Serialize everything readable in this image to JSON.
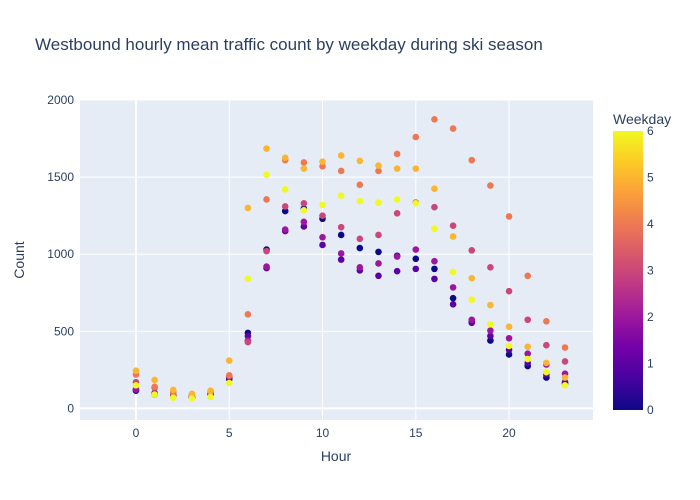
{
  "chart_data": {
    "type": "scatter",
    "title": "Westbound hourly mean traffic count by weekday during ski season",
    "xlabel": "Hour",
    "ylabel": "Count",
    "xlim": [
      -3,
      24.5
    ],
    "ylim": [
      -75,
      2000
    ],
    "xticks": [
      0,
      5,
      10,
      15,
      20
    ],
    "yticks": [
      0,
      500,
      1000,
      1500,
      2000
    ],
    "grid": true,
    "colorbar": {
      "title": "Weekday",
      "range": [
        0,
        6
      ],
      "ticks": [
        0,
        1,
        2,
        3,
        4,
        5,
        6
      ],
      "colorscale": "plasma"
    },
    "colors": [
      "#0d0887",
      "#46039f",
      "#7201a8",
      "#9c179e",
      "#bd3786",
      "#d8576b",
      "#ed7953",
      "#fb9f3a",
      "#fdca26",
      "#f0f921"
    ],
    "x": [
      0,
      1,
      2,
      3,
      4,
      5,
      6,
      7,
      8,
      9,
      10,
      11,
      12,
      13,
      14,
      15,
      16,
      17,
      18,
      19,
      20,
      21,
      22,
      23
    ],
    "series": [
      {
        "weekday": 0,
        "values": [
          115,
          90,
          75,
          70,
          90,
          190,
          490,
          1030,
          1280,
          1295,
          1230,
          1125,
          1040,
          1015,
          990,
          970,
          905,
          715,
          560,
          440,
          350,
          275,
          200,
          160
        ]
      },
      {
        "weekday": 1,
        "values": [
          120,
          95,
          80,
          72,
          92,
          200,
          470,
          910,
          1150,
          1180,
          1060,
          965,
          895,
          860,
          890,
          905,
          840,
          675,
          555,
          470,
          380,
          295,
          220,
          170
        ]
      },
      {
        "weekday": 2,
        "values": [
          125,
          100,
          82,
          75,
          95,
          205,
          440,
          920,
          1160,
          1210,
          1110,
          1005,
          915,
          940,
          985,
          1030,
          955,
          785,
          575,
          505,
          455,
          355,
          285,
          225
        ]
      },
      {
        "weekday": 3,
        "values": [
          170,
          135,
          100,
          85,
          105,
          210,
          430,
          1020,
          1310,
          1330,
          1250,
          1175,
          1100,
          1125,
          1265,
          1335,
          1305,
          1185,
          1025,
          915,
          760,
          575,
          410,
          305
        ]
      },
      {
        "weekday": 4,
        "values": [
          220,
          140,
          105,
          90,
          110,
          215,
          610,
          1355,
          1610,
          1595,
          1570,
          1540,
          1450,
          1540,
          1650,
          1760,
          1875,
          1815,
          1610,
          1445,
          1245,
          860,
          565,
          395
        ]
      },
      {
        "weekday": 5,
        "values": [
          245,
          185,
          120,
          95,
          115,
          310,
          1300,
          1685,
          1625,
          1555,
          1600,
          1640,
          1605,
          1575,
          1555,
          1555,
          1425,
          1115,
          845,
          670,
          530,
          400,
          295,
          200
        ]
      },
      {
        "weekday": 6,
        "values": [
          150,
          90,
          70,
          65,
          75,
          165,
          840,
          1515,
          1420,
          1285,
          1320,
          1380,
          1345,
          1335,
          1355,
          1330,
          1165,
          885,
          705,
          545,
          405,
          320,
          235,
          150
        ]
      }
    ]
  }
}
